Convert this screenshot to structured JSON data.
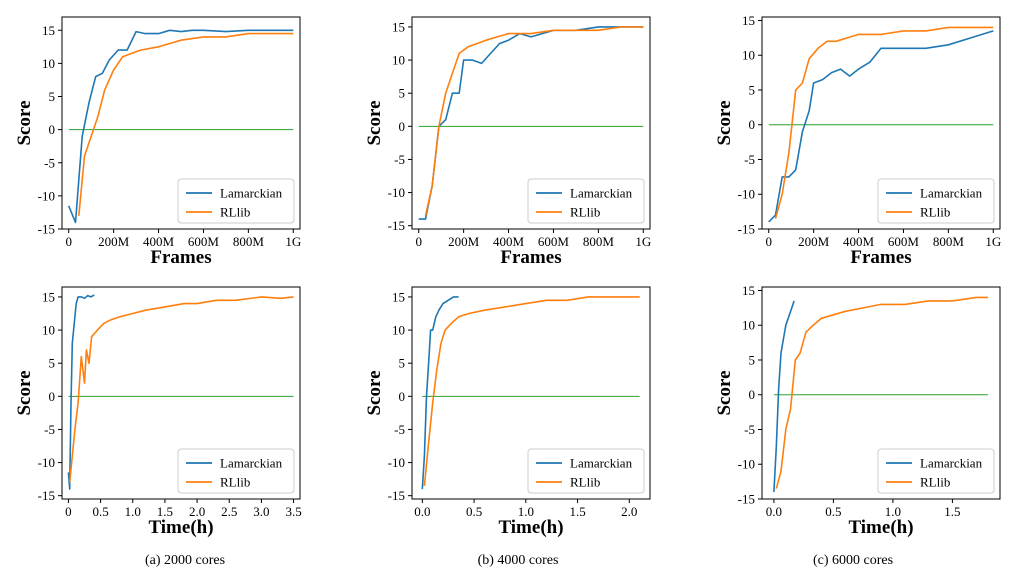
{
  "captions": [
    "(a) 2000 cores",
    "(b) 4000 cores",
    "(c) 6000 cores"
  ],
  "colors": {
    "lamarckian": "#1f77b4",
    "rllib": "#ff7f0e",
    "baseline": "#2ca02c",
    "axis": "#000000"
  },
  "chart_data": [
    {
      "type": "line",
      "panel": "a-frames",
      "xlabel": "Frames",
      "ylabel": "Score",
      "xlim": [
        -30,
        1030
      ],
      "ylim": [
        -15,
        17
      ],
      "xticks": [
        0,
        200,
        400,
        600,
        800,
        1000
      ],
      "xtick_labels": [
        "0",
        "200M",
        "400M",
        "600M",
        "800M",
        "1G"
      ],
      "yticks": [
        -15,
        -10,
        -5,
        0,
        5,
        10,
        15
      ],
      "ytick_labels": [
        "-15",
        "-10",
        "-5",
        "0",
        "5",
        "10",
        "15"
      ],
      "legend": "bottom-right",
      "series": [
        {
          "name": "Lamarckian",
          "x": [
            0,
            30,
            60,
            90,
            120,
            150,
            180,
            220,
            260,
            300,
            340,
            400,
            450,
            500,
            550,
            600,
            700,
            800,
            900,
            1000
          ],
          "y": [
            -11.5,
            -14,
            -1,
            4,
            8,
            8.5,
            10.5,
            12,
            12,
            14.8,
            14.5,
            14.5,
            15,
            14.8,
            15,
            15,
            14.8,
            15,
            15,
            15
          ]
        },
        {
          "name": "RLlib",
          "x": [
            45,
            70,
            100,
            130,
            160,
            200,
            240,
            280,
            320,
            400,
            450,
            500,
            600,
            700,
            800,
            900,
            1000
          ],
          "y": [
            -13,
            -4,
            -1,
            2,
            6,
            9,
            11,
            11.5,
            12,
            12.5,
            13,
            13.5,
            14,
            14,
            14.5,
            14.5,
            14.5
          ]
        }
      ],
      "hline": 0,
      "hline_range": [
        0,
        1000
      ]
    },
    {
      "type": "line",
      "panel": "b-frames",
      "xlabel": "Frames",
      "ylabel": "Score",
      "xlim": [
        -30,
        1030
      ],
      "ylim": [
        -15.5,
        16.5
      ],
      "xticks": [
        0,
        200,
        400,
        600,
        800,
        1000
      ],
      "xtick_labels": [
        "0",
        "200M",
        "400M",
        "600M",
        "800M",
        "1G"
      ],
      "yticks": [
        -15,
        -10,
        -5,
        0,
        5,
        10,
        15
      ],
      "ytick_labels": [
        "-15",
        "-10",
        "-5",
        "0",
        "5",
        "10",
        "15"
      ],
      "legend": "bottom-right",
      "series": [
        {
          "name": "Lamarckian",
          "x": [
            0,
            30,
            60,
            90,
            120,
            150,
            180,
            200,
            240,
            280,
            320,
            360,
            400,
            450,
            500,
            550,
            600,
            700,
            800,
            900,
            1000
          ],
          "y": [
            -14,
            -14,
            -9,
            0,
            1,
            5,
            5,
            10,
            10,
            9.5,
            11,
            12.5,
            13,
            14,
            13.5,
            14,
            14.5,
            14.5,
            15,
            15,
            15
          ]
        },
        {
          "name": "RLlib",
          "x": [
            30,
            60,
            90,
            120,
            150,
            180,
            220,
            260,
            300,
            350,
            400,
            500,
            600,
            700,
            800,
            900,
            1000
          ],
          "y": [
            -13.5,
            -9,
            0,
            5,
            8,
            11,
            12,
            12.5,
            13,
            13.5,
            14,
            14,
            14.5,
            14.5,
            14.5,
            15,
            15
          ]
        }
      ],
      "hline": 0,
      "hline_range": [
        0,
        1000
      ]
    },
    {
      "type": "line",
      "panel": "c-frames",
      "xlabel": "Frames",
      "ylabel": "Score",
      "xlim": [
        -30,
        1030
      ],
      "ylim": [
        -15,
        15.5
      ],
      "xticks": [
        0,
        200,
        400,
        600,
        800,
        1000
      ],
      "xtick_labels": [
        "0",
        "200M",
        "400M",
        "600M",
        "800M",
        "1G"
      ],
      "yticks": [
        -15,
        -10,
        -5,
        0,
        5,
        10,
        15
      ],
      "ytick_labels": [
        "-15",
        "-10",
        "-5",
        "0",
        "5",
        "10",
        "15"
      ],
      "legend": "bottom-right",
      "series": [
        {
          "name": "Lamarckian",
          "x": [
            0,
            30,
            60,
            90,
            120,
            150,
            180,
            200,
            240,
            280,
            320,
            360,
            400,
            450,
            500,
            550,
            600,
            700,
            800,
            900,
            1000
          ],
          "y": [
            -14,
            -13,
            -7.5,
            -7.5,
            -6.5,
            -1,
            2,
            6,
            6.5,
            7.5,
            8,
            7,
            8,
            9,
            11,
            11,
            11,
            11,
            11.5,
            12.5,
            13.5
          ]
        },
        {
          "name": "RLlib",
          "x": [
            30,
            60,
            90,
            120,
            150,
            180,
            220,
            260,
            300,
            350,
            400,
            500,
            600,
            700,
            800,
            900,
            1000
          ],
          "y": [
            -13.5,
            -10,
            -4,
            5,
            6,
            9.5,
            11,
            12,
            12,
            12.5,
            13,
            13,
            13.5,
            13.5,
            14,
            14,
            14
          ]
        }
      ],
      "hline": 0,
      "hline_range": [
        0,
        1000
      ]
    },
    {
      "type": "line",
      "panel": "a-time",
      "xlabel": "Time(h)",
      "ylabel": "Score",
      "xlim": [
        -0.1,
        3.6
      ],
      "ylim": [
        -15.5,
        16.5
      ],
      "xticks": [
        0,
        0.5,
        1.0,
        1.5,
        2.0,
        2.5,
        3.0,
        3.5
      ],
      "xtick_labels": [
        "0",
        "0.5",
        "1.0",
        "1.5",
        "2.0",
        "2.5",
        "3.0",
        "3.5"
      ],
      "yticks": [
        -15,
        -10,
        -5,
        0,
        5,
        10,
        15
      ],
      "ytick_labels": [
        "-15",
        "-10",
        "-5",
        "0",
        "5",
        "10",
        "15"
      ],
      "legend": "bottom-right",
      "series": [
        {
          "name": "Lamarckian",
          "x": [
            0,
            0.02,
            0.04,
            0.06,
            0.08,
            0.1,
            0.12,
            0.15,
            0.2,
            0.25,
            0.3,
            0.35,
            0.4
          ],
          "y": [
            -11.5,
            -14,
            -1,
            8,
            10,
            12,
            14,
            15,
            15,
            14.8,
            15.2,
            15,
            15.3
          ]
        },
        {
          "name": "RLlib",
          "x": [
            0.02,
            0.1,
            0.15,
            0.2,
            0.25,
            0.28,
            0.32,
            0.36,
            0.45,
            0.55,
            0.65,
            0.8,
            1.0,
            1.2,
            1.5,
            1.8,
            2.0,
            2.3,
            2.6,
            3.0,
            3.3,
            3.5
          ],
          "y": [
            -13,
            -5,
            -1,
            6,
            2,
            7,
            5,
            9,
            10,
            11,
            11.5,
            12,
            12.5,
            13,
            13.5,
            14,
            14,
            14.5,
            14.5,
            15,
            14.8,
            15
          ]
        }
      ],
      "hline": 0,
      "hline_range": [
        0,
        3.5
      ]
    },
    {
      "type": "line",
      "panel": "b-time",
      "xlabel": "Time(h)",
      "ylabel": "Score",
      "xlim": [
        -0.1,
        2.2
      ],
      "ylim": [
        -15.5,
        16.5
      ],
      "xticks": [
        0,
        0.5,
        1.0,
        1.5,
        2.0
      ],
      "xtick_labels": [
        "0.0",
        "0.5",
        "1.0",
        "1.5",
        "2.0"
      ],
      "yticks": [
        -15,
        -10,
        -5,
        0,
        5,
        10,
        15
      ],
      "ytick_labels": [
        "-15",
        "-10",
        "-5",
        "0",
        "5",
        "10",
        "15"
      ],
      "legend": "bottom-right",
      "series": [
        {
          "name": "Lamarckian",
          "x": [
            0,
            0.02,
            0.04,
            0.06,
            0.08,
            0.1,
            0.13,
            0.16,
            0.2,
            0.25,
            0.3,
            0.35
          ],
          "y": [
            -14,
            -9,
            0,
            5,
            10,
            10,
            12,
            13,
            14,
            14.5,
            15,
            15
          ]
        },
        {
          "name": "RLlib",
          "x": [
            0.02,
            0.06,
            0.1,
            0.14,
            0.18,
            0.22,
            0.28,
            0.35,
            0.45,
            0.6,
            0.8,
            1.0,
            1.2,
            1.4,
            1.6,
            1.8,
            2.0,
            2.1
          ],
          "y": [
            -13.5,
            -7,
            -1,
            4,
            8,
            10,
            11,
            12,
            12.5,
            13,
            13.5,
            14,
            14.5,
            14.5,
            15,
            15,
            15,
            15
          ]
        }
      ],
      "hline": 0,
      "hline_range": [
        0,
        2.1
      ]
    },
    {
      "type": "line",
      "panel": "c-time",
      "xlabel": "Time(h)",
      "ylabel": "Score",
      "xlim": [
        -0.1,
        1.9
      ],
      "ylim": [
        -15,
        15.5
      ],
      "xticks": [
        0,
        0.5,
        1.0,
        1.5
      ],
      "xtick_labels": [
        "0.0",
        "0.5",
        "1.0",
        "1.5"
      ],
      "yticks": [
        -15,
        -10,
        -5,
        0,
        5,
        10,
        15
      ],
      "ytick_labels": [
        "-15",
        "-10",
        "-5",
        "0",
        "5",
        "10",
        "15"
      ],
      "legend": "bottom-right",
      "series": [
        {
          "name": "Lamarckian",
          "x": [
            0,
            0.02,
            0.04,
            0.06,
            0.08,
            0.1,
            0.12,
            0.15,
            0.17
          ],
          "y": [
            -14,
            -7.5,
            1,
            6,
            8,
            10,
            11,
            12.5,
            13.5
          ]
        },
        {
          "name": "RLlib",
          "x": [
            0.02,
            0.06,
            0.1,
            0.14,
            0.18,
            0.22,
            0.27,
            0.33,
            0.4,
            0.5,
            0.6,
            0.75,
            0.9,
            1.1,
            1.3,
            1.5,
            1.7,
            1.8
          ],
          "y": [
            -13.5,
            -11,
            -5,
            -2,
            5,
            6,
            9,
            10,
            11,
            11.5,
            12,
            12.5,
            13,
            13,
            13.5,
            13.5,
            14,
            14
          ]
        }
      ],
      "hline": 0,
      "hline_range": [
        0,
        1.8
      ]
    }
  ]
}
